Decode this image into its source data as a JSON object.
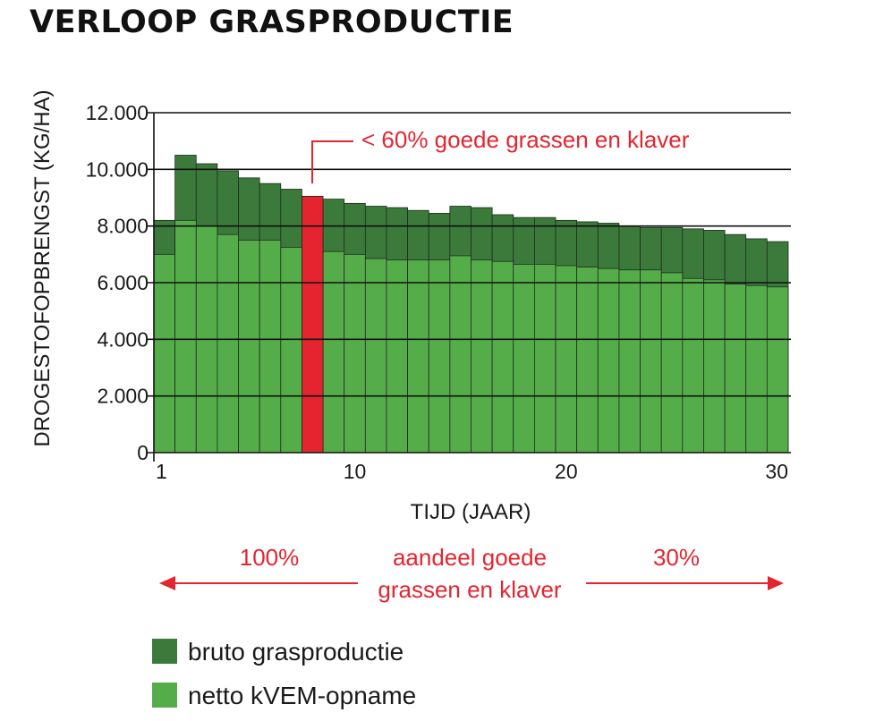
{
  "chart_data": {
    "type": "bar",
    "title": "VERLOOP GRASPRODUCTIE",
    "xlabel": "TIJD (JAAR)",
    "ylabel": "DROGESTOFOPBRENGST (KG/HA)",
    "ylim": [
      0,
      12000
    ],
    "yticks": [
      "0",
      "2.000",
      "4.000",
      "6.000",
      "8.000",
      "10.000",
      "12.000"
    ],
    "xticks": [
      "1",
      "10",
      "20",
      "30"
    ],
    "xtick_years": [
      1,
      10,
      20,
      30
    ],
    "grid": "horizontal",
    "categories": [
      1,
      2,
      3,
      4,
      5,
      6,
      7,
      8,
      9,
      10,
      11,
      12,
      13,
      14,
      15,
      16,
      17,
      18,
      19,
      20,
      21,
      22,
      23,
      24,
      25,
      26,
      27,
      28,
      29,
      30
    ],
    "series": [
      {
        "name": "bruto grasproductie",
        "color": "#3b7a3a",
        "values": [
          8200,
          10500,
          10200,
          9950,
          9700,
          9500,
          9300,
          9050,
          8950,
          8800,
          8700,
          8650,
          8550,
          8450,
          8700,
          8650,
          8400,
          8300,
          8300,
          8200,
          8150,
          8100,
          8000,
          7950,
          7950,
          7900,
          7850,
          7700,
          7550,
          7450
        ]
      },
      {
        "name": "netto kVEM-opname",
        "color": "#55ad4a",
        "values": [
          7000,
          8200,
          8000,
          7700,
          7500,
          7500,
          7250,
          9050,
          7100,
          7000,
          6850,
          6800,
          6800,
          6800,
          6950,
          6800,
          6750,
          6650,
          6650,
          6600,
          6550,
          6500,
          6450,
          6450,
          6350,
          6150,
          6100,
          5950,
          5900,
          5850
        ]
      }
    ],
    "highlight": {
      "year": 8,
      "color": "#e4252f",
      "label": "< 60% goede grassen en klaver"
    },
    "annotations": {
      "left_percent": "100%",
      "right_percent": "30%",
      "middle_line1": "aandeel goede",
      "middle_line2": "grassen en klaver",
      "arrow_color": "#e4252f"
    },
    "legend": [
      {
        "label": "bruto grasproductie",
        "color": "#3b7a3a"
      },
      {
        "label": "netto kVEM-opname",
        "color": "#55ad4a"
      }
    ]
  }
}
